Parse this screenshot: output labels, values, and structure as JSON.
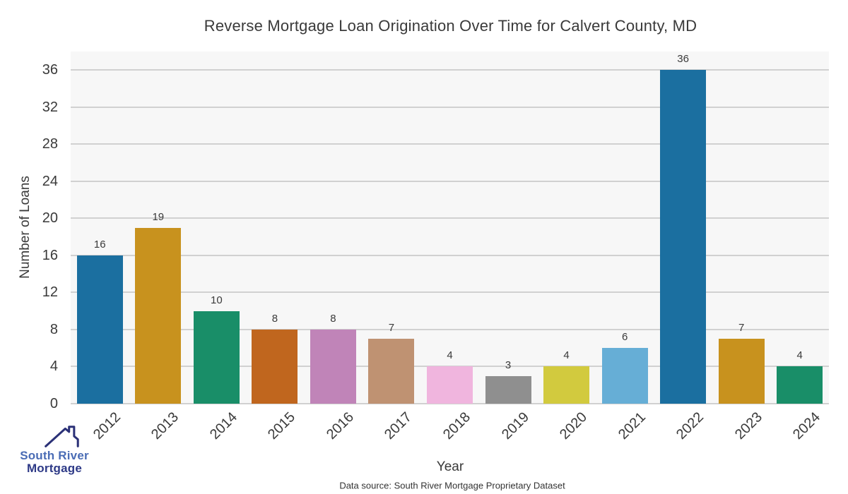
{
  "header": {
    "title": "Reverse Mortgage Loan Origination Over Time for Calvert County, MD"
  },
  "chart_data": {
    "type": "bar",
    "title": "Reverse Mortgage Loan Origination Over Time for Calvert County, MD",
    "categories": [
      "2012",
      "2013",
      "2014",
      "2015",
      "2016",
      "2017",
      "2018",
      "2019",
      "2020",
      "2021",
      "2022",
      "2023",
      "2024"
    ],
    "values": [
      16,
      19,
      10,
      8,
      8,
      7,
      4,
      3,
      4,
      6,
      36,
      7,
      4
    ],
    "bar_colors": [
      "#1b6fa0",
      "#c8921e",
      "#198e68",
      "#c0661e",
      "#c084b8",
      "#bf9272",
      "#f0b5de",
      "#8f8f8f",
      "#d2ca3e",
      "#66aed6",
      "#1b6fa0",
      "#c8921e",
      "#198e68"
    ],
    "xlabel": "Year",
    "ylabel": "Number of Loans",
    "yticks": [
      0,
      4,
      8,
      12,
      16,
      20,
      24,
      28,
      32,
      36
    ],
    "ylim": [
      0,
      38
    ],
    "grid": true,
    "grid_color": "#d1d1d1",
    "plot_background": "#f7f7f7",
    "tick_label_color": "#3a3a3a",
    "legend": null
  },
  "footer": {
    "data_source": "Data source: South River Mortgage Proprietary Dataset"
  },
  "logo": {
    "icon": "house-roof-icon",
    "line1": "South River",
    "line2": "Mortgage",
    "line1_color": "#4a6cb5",
    "line2_color": "#2e3a87",
    "roof_color": "#2b3177"
  }
}
